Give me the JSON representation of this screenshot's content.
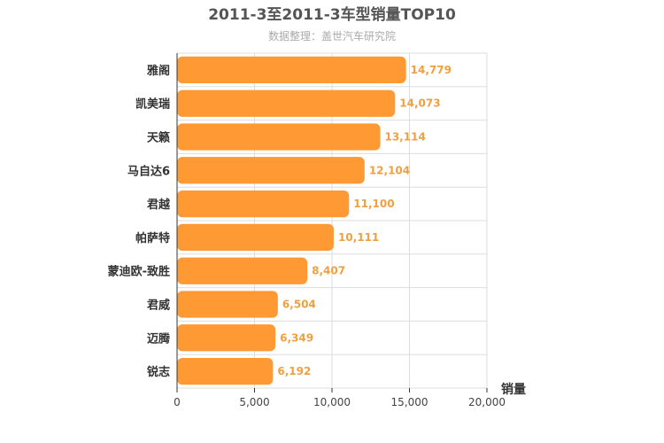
{
  "chart_data": {
    "type": "bar",
    "orientation": "horizontal",
    "title": "2011-3至2011-3车型销量TOP10",
    "subtitle": "数据整理：盖世汽车研究院",
    "xlabel": "销量",
    "ylabel": "",
    "categories": [
      "雅阁",
      "凯美瑞",
      "天籁",
      "马自达6",
      "君越",
      "帕萨特",
      "蒙迪欧-致胜",
      "君威",
      "迈腾",
      "锐志"
    ],
    "values": [
      14779,
      14073,
      13114,
      12104,
      11100,
      10111,
      8407,
      6504,
      6349,
      6192
    ],
    "value_labels": [
      "14,779",
      "14,073",
      "13,114",
      "12,104",
      "11,100",
      "10,111",
      "8,407",
      "6,504",
      "6,349",
      "6,192"
    ],
    "xlim": [
      0,
      20000
    ],
    "xticks": [
      0,
      5000,
      10000,
      15000,
      20000
    ],
    "xtick_labels": [
      "0",
      "5,000",
      "10,000",
      "15,000",
      "20,000"
    ],
    "grid": true,
    "legend": "none",
    "colors": {
      "bar": "#ff9933",
      "data_label": "#f0a040"
    }
  }
}
